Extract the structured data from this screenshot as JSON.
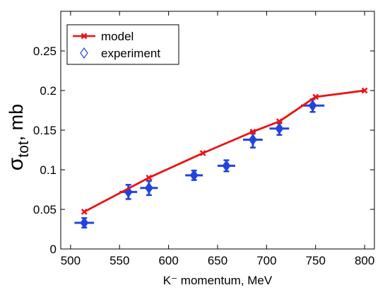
{
  "chart_data": {
    "type": "line",
    "xlabel": "K⁻ momentum, MeV",
    "ylabel_symbol": "σ",
    "ylabel_subscript": "tot",
    "ylabel_rest": ", mb",
    "xlim": [
      490,
      810
    ],
    "ylim": [
      0,
      0.3
    ],
    "x_ticks": [
      500,
      550,
      600,
      650,
      700,
      750,
      800
    ],
    "y_ticks": [
      0,
      0.05,
      0.1,
      0.15,
      0.2,
      0.25
    ],
    "x_tick_labels": [
      "500",
      "550",
      "600",
      "650",
      "700",
      "750",
      "800"
    ],
    "y_tick_labels": [
      "0",
      "0.05",
      "0.1",
      "0.15",
      "0.2",
      "0.25"
    ],
    "grid": false,
    "legend_position": "top-left",
    "legend": [
      "model",
      "experiment"
    ],
    "colors": {
      "model": "#ee1111",
      "experiment": "#2244dd"
    },
    "series": [
      {
        "name": "model",
        "style": "line-with-x-markers",
        "x": [
          514,
          580,
          635,
          686,
          713,
          750,
          800
        ],
        "y": [
          0.047,
          0.09,
          0.121,
          0.148,
          0.161,
          0.192,
          0.2
        ]
      },
      {
        "name": "experiment",
        "style": "diamond-with-errorbars",
        "x": [
          514,
          559,
          580,
          626,
          659,
          686,
          713,
          747
        ],
        "y": [
          0.033,
          0.072,
          0.077,
          0.093,
          0.105,
          0.138,
          0.152,
          0.181
        ],
        "xerr": [
          10,
          9,
          9,
          9,
          9,
          10,
          10,
          12
        ],
        "yerr": [
          0.006,
          0.009,
          0.009,
          0.006,
          0.007,
          0.01,
          0.008,
          0.008
        ]
      }
    ]
  }
}
